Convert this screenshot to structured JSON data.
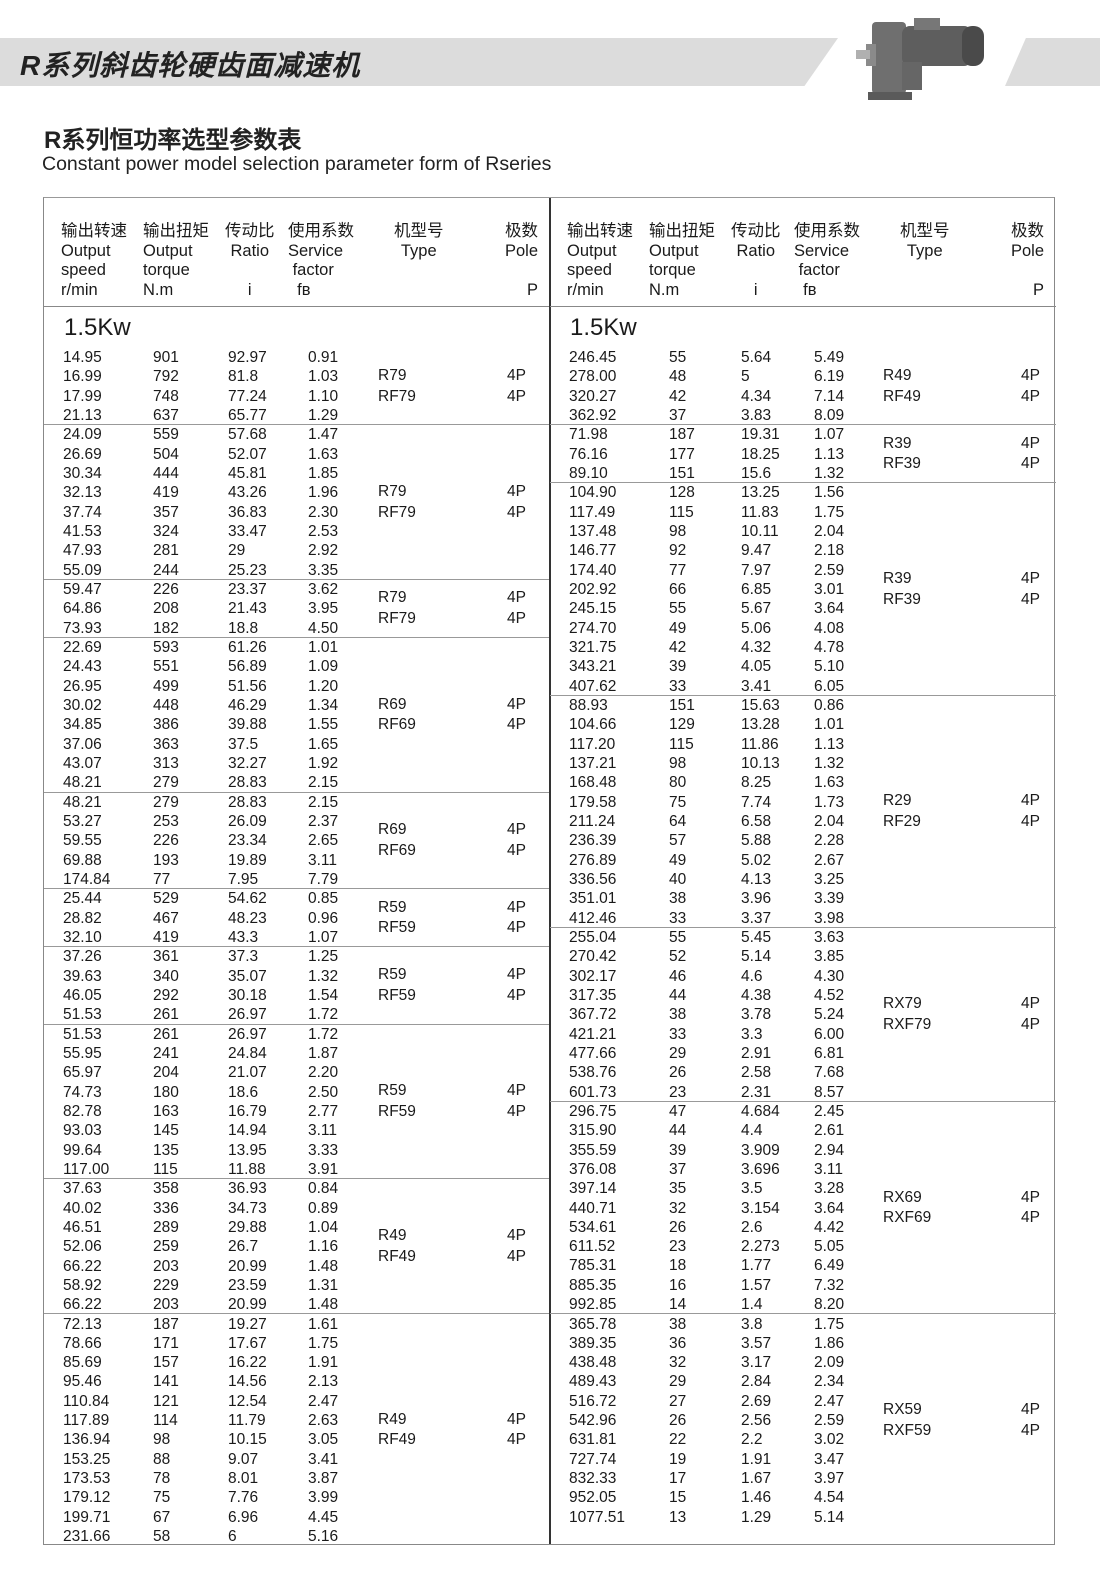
{
  "banner": {
    "title": "R系列斜齿轮硬齿面减速机"
  },
  "subtitle": {
    "cn": "R系列恒功率选型参数表",
    "en": "Constant power model selection parameter form of Rseries"
  },
  "headers": {
    "speed": "输出转速\nOutput\nspeed\nr/min",
    "torque": "输出扭矩\nOutput\ntorque\nN.m",
    "ratio": "传动比\nRatio\n\ni",
    "factor": "使用系数\nService\n factor\n  fʙ",
    "type": "机型号\nType",
    "pole": "极数\nPole\n\nP"
  },
  "power_label": "1.5Kw",
  "left_groups": [
    {
      "models": [
        "R79",
        "RF79"
      ],
      "poles": [
        "4P",
        "4P"
      ],
      "rows": [
        [
          "14.95",
          "901",
          "92.97",
          "0.91"
        ],
        [
          "16.99",
          "792",
          "81.8",
          "1.03"
        ],
        [
          "17.99",
          "748",
          "77.24",
          "1.10"
        ],
        [
          "21.13",
          "637",
          "65.77",
          "1.29"
        ]
      ]
    },
    {
      "models": [
        "R79",
        "RF79"
      ],
      "poles": [
        "4P",
        "4P"
      ],
      "rows": [
        [
          "24.09",
          "559",
          "57.68",
          "1.47"
        ],
        [
          "26.69",
          "504",
          "52.07",
          "1.63"
        ],
        [
          "30.34",
          "444",
          "45.81",
          "1.85"
        ],
        [
          "32.13",
          "419",
          "43.26",
          "1.96"
        ],
        [
          "37.74",
          "357",
          "36.83",
          "2.30"
        ],
        [
          "41.53",
          "324",
          "33.47",
          "2.53"
        ],
        [
          "47.93",
          "281",
          "29",
          "2.92"
        ],
        [
          "55.09",
          "244",
          "25.23",
          "3.35"
        ]
      ]
    },
    {
      "models": [
        "R79",
        "RF79"
      ],
      "poles": [
        "4P",
        "4P"
      ],
      "rows": [
        [
          "59.47",
          "226",
          "23.37",
          "3.62"
        ],
        [
          "64.86",
          "208",
          "21.43",
          "3.95"
        ],
        [
          "73.93",
          "182",
          "18.8",
          "4.50"
        ]
      ]
    },
    {
      "models": [
        "R69",
        "RF69"
      ],
      "poles": [
        "4P",
        "4P"
      ],
      "rows": [
        [
          "22.69",
          "593",
          "61.26",
          "1.01"
        ],
        [
          "24.43",
          "551",
          "56.89",
          "1.09"
        ],
        [
          "26.95",
          "499",
          "51.56",
          "1.20"
        ],
        [
          "30.02",
          "448",
          "46.29",
          "1.34"
        ],
        [
          "34.85",
          "386",
          "39.88",
          "1.55"
        ],
        [
          "37.06",
          "363",
          "37.5",
          "1.65"
        ],
        [
          "43.07",
          "313",
          "32.27",
          "1.92"
        ],
        [
          "48.21",
          "279",
          "28.83",
          "2.15"
        ]
      ]
    },
    {
      "models": [
        "R69",
        "RF69"
      ],
      "poles": [
        "4P",
        "4P"
      ],
      "rows": [
        [
          "48.21",
          "279",
          "28.83",
          "2.15"
        ],
        [
          "53.27",
          "253",
          "26.09",
          "2.37"
        ],
        [
          "59.55",
          "226",
          "23.34",
          "2.65"
        ],
        [
          "69.88",
          "193",
          "19.89",
          "3.11"
        ],
        [
          "174.84",
          "77",
          "7.95",
          "7.79"
        ]
      ]
    },
    {
      "models": [
        "R59",
        "RF59"
      ],
      "poles": [
        "4P",
        "4P"
      ],
      "rows": [
        [
          "25.44",
          "529",
          "54.62",
          "0.85"
        ],
        [
          "28.82",
          "467",
          "48.23",
          "0.96"
        ],
        [
          "32.10",
          "419",
          "43.3",
          "1.07"
        ]
      ]
    },
    {
      "models": [
        "R59",
        "RF59"
      ],
      "poles": [
        "4P",
        "4P"
      ],
      "rows": [
        [
          "37.26",
          "361",
          "37.3",
          "1.25"
        ],
        [
          "39.63",
          "340",
          "35.07",
          "1.32"
        ],
        [
          "46.05",
          "292",
          "30.18",
          "1.54"
        ],
        [
          "51.53",
          "261",
          "26.97",
          "1.72"
        ]
      ]
    },
    {
      "models": [
        "R59",
        "RF59"
      ],
      "poles": [
        "4P",
        "4P"
      ],
      "rows": [
        [
          "51.53",
          "261",
          "26.97",
          "1.72"
        ],
        [
          "55.95",
          "241",
          "24.84",
          "1.87"
        ],
        [
          "65.97",
          "204",
          "21.07",
          "2.20"
        ],
        [
          "74.73",
          "180",
          "18.6",
          "2.50"
        ],
        [
          "82.78",
          "163",
          "16.79",
          "2.77"
        ],
        [
          "93.03",
          "145",
          "14.94",
          "3.11"
        ],
        [
          "99.64",
          "135",
          "13.95",
          "3.33"
        ],
        [
          "117.00",
          "115",
          "11.88",
          "3.91"
        ]
      ]
    },
    {
      "models": [
        "R49",
        "RF49"
      ],
      "poles": [
        "4P",
        "4P"
      ],
      "rows": [
        [
          "37.63",
          "358",
          "36.93",
          "0.84"
        ],
        [
          "40.02",
          "336",
          "34.73",
          "0.89"
        ],
        [
          "46.51",
          "289",
          "29.88",
          "1.04"
        ],
        [
          "52.06",
          "259",
          "26.7",
          "1.16"
        ],
        [
          "66.22",
          "203",
          "20.99",
          "1.48"
        ],
        [
          "58.92",
          "229",
          "23.59",
          "1.31"
        ],
        [
          "66.22",
          "203",
          "20.99",
          "1.48"
        ]
      ]
    },
    {
      "models": [
        "R49",
        "RF49"
      ],
      "poles": [
        "4P",
        "4P"
      ],
      "rows": [
        [
          "72.13",
          "187",
          "19.27",
          "1.61"
        ],
        [
          "78.66",
          "171",
          "17.67",
          "1.75"
        ],
        [
          "85.69",
          "157",
          "16.22",
          "1.91"
        ],
        [
          "95.46",
          "141",
          "14.56",
          "2.13"
        ],
        [
          "110.84",
          "121",
          "12.54",
          "2.47"
        ],
        [
          "117.89",
          "114",
          "11.79",
          "2.63"
        ],
        [
          "136.94",
          "98",
          "10.15",
          "3.05"
        ],
        [
          "153.25",
          "88",
          "9.07",
          "3.41"
        ],
        [
          "173.53",
          "78",
          "8.01",
          "3.87"
        ],
        [
          "179.12",
          "75",
          "7.76",
          "3.99"
        ],
        [
          "199.71",
          "67",
          "6.96",
          "4.45"
        ],
        [
          "231.66",
          "58",
          "6",
          "5.16"
        ]
      ]
    }
  ],
  "right_groups": [
    {
      "models": [
        "R49",
        "RF49"
      ],
      "poles": [
        "4P",
        "4P"
      ],
      "rows": [
        [
          "246.45",
          "55",
          "5.64",
          "5.49"
        ],
        [
          "278.00",
          "48",
          "5",
          "6.19"
        ],
        [
          "320.27",
          "42",
          "4.34",
          "7.14"
        ],
        [
          "362.92",
          "37",
          "3.83",
          "8.09"
        ]
      ]
    },
    {
      "models": [
        "R39",
        "RF39"
      ],
      "poles": [
        "4P",
        "4P"
      ],
      "rows": [
        [
          "71.98",
          "187",
          "19.31",
          "1.07"
        ],
        [
          "76.16",
          "177",
          "18.25",
          "1.13"
        ],
        [
          "89.10",
          "151",
          "15.6",
          "1.32"
        ]
      ]
    },
    {
      "models": [
        "R39",
        "RF39"
      ],
      "poles": [
        "4P",
        "4P"
      ],
      "rows": [
        [
          "104.90",
          "128",
          "13.25",
          "1.56"
        ],
        [
          "117.49",
          "115",
          "11.83",
          "1.75"
        ],
        [
          "137.48",
          "98",
          "10.11",
          "2.04"
        ],
        [
          "146.77",
          "92",
          "9.47",
          "2.18"
        ],
        [
          "174.40",
          "77",
          "7.97",
          "2.59"
        ],
        [
          "202.92",
          "66",
          "6.85",
          "3.01"
        ],
        [
          "245.15",
          "55",
          "5.67",
          "3.64"
        ],
        [
          "274.70",
          "49",
          "5.06",
          "4.08"
        ],
        [
          "321.75",
          "42",
          "4.32",
          "4.78"
        ],
        [
          "343.21",
          "39",
          "4.05",
          "5.10"
        ],
        [
          "407.62",
          "33",
          "3.41",
          "6.05"
        ]
      ]
    },
    {
      "models": [
        "R29",
        "RF29"
      ],
      "poles": [
        "4P",
        "4P"
      ],
      "rows": [
        [
          "88.93",
          "151",
          "15.63",
          "0.86"
        ],
        [
          "104.66",
          "129",
          "13.28",
          "1.01"
        ],
        [
          "117.20",
          "115",
          "11.86",
          "1.13"
        ],
        [
          "137.21",
          "98",
          "10.13",
          "1.32"
        ],
        [
          "168.48",
          "80",
          "8.25",
          "1.63"
        ],
        [
          "179.58",
          "75",
          "7.74",
          "1.73"
        ],
        [
          "211.24",
          "64",
          "6.58",
          "2.04"
        ],
        [
          "236.39",
          "57",
          "5.88",
          "2.28"
        ],
        [
          "276.89",
          "49",
          "5.02",
          "2.67"
        ],
        [
          "336.56",
          "40",
          "4.13",
          "3.25"
        ],
        [
          "351.01",
          "38",
          "3.96",
          "3.39"
        ],
        [
          "412.46",
          "33",
          "3.37",
          "3.98"
        ]
      ]
    },
    {
      "models": [
        "RX79",
        "RXF79"
      ],
      "poles": [
        "4P",
        "4P"
      ],
      "rows": [
        [
          "255.04",
          "55",
          "5.45",
          "3.63"
        ],
        [
          "270.42",
          "52",
          "5.14",
          "3.85"
        ],
        [
          "302.17",
          "46",
          "4.6",
          "4.30"
        ],
        [
          "317.35",
          "44",
          "4.38",
          "4.52"
        ],
        [
          "367.72",
          "38",
          "3.78",
          "5.24"
        ],
        [
          "421.21",
          "33",
          "3.3",
          "6.00"
        ],
        [
          "477.66",
          "29",
          "2.91",
          "6.81"
        ],
        [
          "538.76",
          "26",
          "2.58",
          "7.68"
        ],
        [
          "601.73",
          "23",
          "2.31",
          "8.57"
        ]
      ]
    },
    {
      "models": [
        "RX69",
        "RXF69"
      ],
      "poles": [
        "4P",
        "4P"
      ],
      "rows": [
        [
          "296.75",
          "47",
          "4.684",
          "2.45"
        ],
        [
          "315.90",
          "44",
          "4.4",
          "2.61"
        ],
        [
          "355.59",
          "39",
          "3.909",
          "2.94"
        ],
        [
          "376.08",
          "37",
          "3.696",
          "3.11"
        ],
        [
          "397.14",
          "35",
          "3.5",
          "3.28"
        ],
        [
          "440.71",
          "32",
          "3.154",
          "3.64"
        ],
        [
          "534.61",
          "26",
          "2.6",
          "4.42"
        ],
        [
          "611.52",
          "23",
          "2.273",
          "5.05"
        ],
        [
          "785.31",
          "18",
          "1.77",
          "6.49"
        ],
        [
          "885.35",
          "16",
          "1.57",
          "7.32"
        ],
        [
          "992.85",
          "14",
          "1.4",
          "8.20"
        ]
      ]
    },
    {
      "models": [
        "RX59",
        "RXF59"
      ],
      "poles": [
        "4P",
        "4P"
      ],
      "rows": [
        [
          "365.78",
          "38",
          "3.8",
          "1.75"
        ],
        [
          "389.35",
          "36",
          "3.57",
          "1.86"
        ],
        [
          "438.48",
          "32",
          "3.17",
          "2.09"
        ],
        [
          "489.43",
          "29",
          "2.84",
          "2.34"
        ],
        [
          "516.72",
          "27",
          "2.69",
          "2.47"
        ],
        [
          "542.96",
          "26",
          "2.56",
          "2.59"
        ],
        [
          "631.81",
          "22",
          "2.2",
          "3.02"
        ],
        [
          "727.74",
          "19",
          "1.91",
          "3.47"
        ],
        [
          "832.33",
          "17",
          "1.67",
          "3.97"
        ],
        [
          "952.05",
          "15",
          "1.46",
          "4.54"
        ],
        [
          "1077.51",
          "13",
          "1.29",
          "5.14"
        ]
      ]
    }
  ]
}
